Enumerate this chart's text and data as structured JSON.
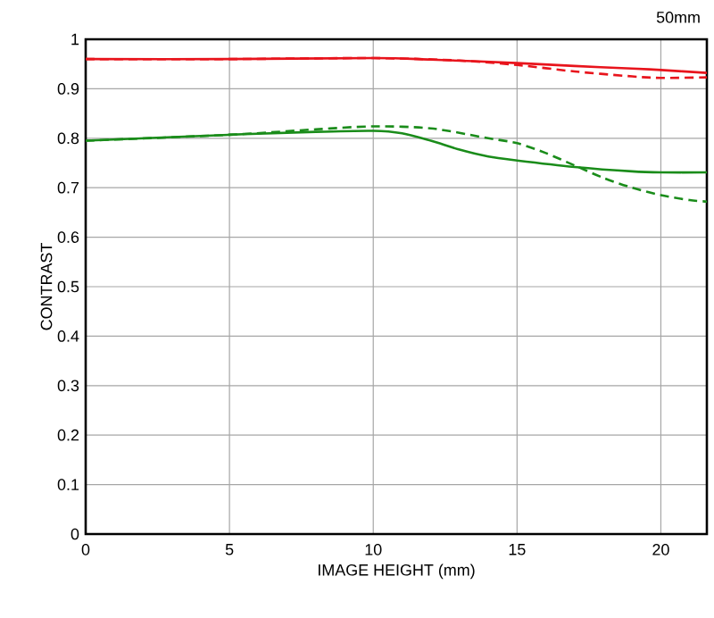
{
  "chart_data": {
    "type": "line",
    "xlabel": "IMAGE HEIGHT (mm)",
    "ylabel": "CONTRAST",
    "annotations": [
      "50mm"
    ],
    "xlim": [
      0,
      21.6
    ],
    "xticks": [
      0,
      5,
      10,
      15,
      20
    ],
    "ylim": [
      0,
      1
    ],
    "yticks": [
      0,
      0.1,
      0.2,
      0.3,
      0.4,
      0.5,
      0.6,
      0.7,
      0.8,
      0.9,
      1
    ],
    "grid": true,
    "series": [
      {
        "color": "#e8141c",
        "line_style": "solid",
        "x": [
          0,
          5,
          10,
          12,
          15,
          17,
          19,
          20,
          21.6
        ],
        "values": [
          0.96,
          0.96,
          0.962,
          0.959,
          0.952,
          0.946,
          0.941,
          0.938,
          0.932
        ]
      },
      {
        "color": "#e8141c",
        "line_style": "dashed",
        "x": [
          0,
          5,
          10,
          13,
          15,
          17,
          19,
          20,
          21.6
        ],
        "values": [
          0.96,
          0.96,
          0.962,
          0.957,
          0.948,
          0.935,
          0.925,
          0.922,
          0.923
        ]
      },
      {
        "color": "#1a8c1a",
        "line_style": "solid",
        "x": [
          0,
          5,
          8,
          10,
          11,
          12,
          13,
          14,
          15,
          17,
          19,
          20,
          21.6
        ],
        "values": [
          0.795,
          0.807,
          0.813,
          0.815,
          0.81,
          0.795,
          0.777,
          0.763,
          0.755,
          0.742,
          0.733,
          0.731,
          0.731
        ]
      },
      {
        "color": "#1a8c1a",
        "line_style": "dashed",
        "x": [
          0,
          5,
          8,
          10,
          12,
          14,
          15,
          16,
          17,
          18,
          19,
          20,
          21,
          21.6
        ],
        "values": [
          0.795,
          0.807,
          0.818,
          0.824,
          0.82,
          0.8,
          0.79,
          0.77,
          0.745,
          0.72,
          0.7,
          0.685,
          0.675,
          0.672
        ]
      }
    ]
  }
}
